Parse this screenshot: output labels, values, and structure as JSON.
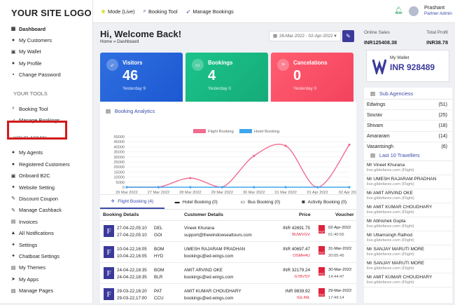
{
  "app": {
    "logo": "YOUR SITE LOGO"
  },
  "sidebar": {
    "items": [
      {
        "label": "Dashboard",
        "icon": "dashboard-icon",
        "glyph": "▦"
      },
      {
        "label": "My Customers",
        "icon": "user-icon",
        "glyph": "●"
      },
      {
        "label": "My Wallet",
        "icon": "wallet-icon",
        "glyph": "▣"
      },
      {
        "label": "My Profile",
        "icon": "profile-icon",
        "glyph": "●"
      },
      {
        "label": "Change Password",
        "icon": "lock-icon",
        "glyph": "▪"
      }
    ],
    "tools_title": "YOUR TOOLS",
    "tools": [
      {
        "label": "Booking Tool",
        "icon": "search-icon",
        "glyph": "⌕"
      },
      {
        "label": "Manage Bookings",
        "icon": "rocket-icon",
        "glyph": "➶"
      }
    ],
    "admin_title": "YOUR ADMIN",
    "admin": [
      {
        "label": "My Agents",
        "icon": "agents-icon",
        "glyph": "●"
      },
      {
        "label": "Registered Customers",
        "icon": "customers-icon",
        "glyph": "●"
      },
      {
        "label": "Onboard B2C",
        "icon": "onboard-icon",
        "glyph": "▣"
      },
      {
        "label": "Website Setting",
        "icon": "settings-icon",
        "glyph": "✦"
      },
      {
        "label": "Discount Coupon",
        "icon": "coupon-icon",
        "glyph": "✎"
      },
      {
        "label": "Manage Cashback",
        "icon": "cashback-icon",
        "glyph": "✎"
      },
      {
        "label": "Invoices",
        "icon": "invoice-icon",
        "glyph": "▤"
      },
      {
        "label": "All Notifications",
        "icon": "bell-icon",
        "glyph": "▲"
      },
      {
        "label": "Settings",
        "icon": "gear-icon",
        "glyph": "✦"
      },
      {
        "label": "Chatboat Settings",
        "icon": "chat-icon",
        "glyph": "✦"
      },
      {
        "label": "My Themes",
        "icon": "theme-icon",
        "glyph": "▤"
      },
      {
        "label": "My Apps",
        "icon": "apps-icon",
        "glyph": "➤"
      },
      {
        "label": "Manage Pages",
        "icon": "pages-icon",
        "glyph": "▤"
      }
    ]
  },
  "topbar": {
    "mode": "Mode (Live)",
    "booking_tool": "Booking Tool",
    "manage_bookings": "Manage Bookings",
    "user_name": "Prashant",
    "user_role": "Partner Admin"
  },
  "main": {
    "welcome": "Hi, Welcome Back!",
    "breadcrumb": "Home » Dashboard",
    "date_range": "26-Mar-2022 - 02-Apr-2022",
    "cards": [
      {
        "title": "Visitors",
        "value": "46",
        "sub": "Yesterday 9",
        "icon": "rocket-icon"
      },
      {
        "title": "Bookings",
        "value": "4",
        "sub": "Yesterday 0",
        "icon": "ticket-icon"
      },
      {
        "title": "Cancelations",
        "value": "0",
        "sub": "Yesterday 0",
        "icon": "cancel-icon"
      }
    ],
    "analytics_title": "Booking Analytics"
  },
  "chart_data": {
    "type": "line",
    "title": "",
    "xlabel": "",
    "ylabel": "",
    "ylim": [
      0,
      50000
    ],
    "yticks": [
      0,
      5000,
      10000,
      15000,
      20000,
      25000,
      30000,
      35000,
      40000,
      45000,
      50000
    ],
    "x": [
      "26 Mar 2022",
      "27 Mar 2022",
      "28 Mar 2022",
      "29 Mar 2022",
      "30 Mar 2022",
      "31 Mar 2022",
      "01 Apr 2022",
      "02 Apr 2022"
    ],
    "legend_position": "top",
    "series": [
      {
        "name": "Flight Booking",
        "color": "#f06c8f",
        "values": [
          0,
          0,
          9000,
          0,
          31000,
          41000,
          0,
          42000
        ]
      },
      {
        "name": "Hotel Booking",
        "color": "#3fa5ee",
        "values": [
          0,
          0,
          0,
          0,
          0,
          0,
          0,
          0
        ]
      }
    ]
  },
  "tabs": [
    {
      "label": "Flight Booking (4)",
      "icon": "plane-icon",
      "glyph": "✈"
    },
    {
      "label": "Hotel Booking (0)",
      "icon": "bed-icon",
      "glyph": "▬"
    },
    {
      "label": "Bus Booking (0)",
      "icon": "bus-icon",
      "glyph": "▭"
    },
    {
      "label": "Activity Booking (0)",
      "icon": "camera-icon",
      "glyph": "◙"
    }
  ],
  "table": {
    "headers": [
      "Booking Details",
      "Customer Details",
      "Price",
      "Voucher"
    ],
    "rows": [
      {
        "d1": "27-04-22,05:10",
        "c1": "DEL",
        "d2": "27-04-22,05:10",
        "c2": "GOI",
        "name": "Vineet Khurana",
        "email": "support@thewindowseattours.com",
        "price": "INR 42691.75",
        "ref": "BUWVGV",
        "vdate": "02-Apr-2022",
        "vtime": "01:40:56"
      },
      {
        "d1": "10-04-22,16:05",
        "c1": "BOM",
        "d2": "10-04-22,16:05",
        "c2": "HYD",
        "name": "UMESH RAJARAM PRADHAN",
        "email": "bookings@ed-wings.com",
        "price": "INR 40697.47",
        "ref": "OSMH4U",
        "vdate": "31-Mar-2022",
        "vtime": "20:05:45"
      },
      {
        "d1": "24-04-22,18:35",
        "c1": "BOM",
        "d2": "24-04-22,18:35",
        "c2": "BLR",
        "name": "AMIT ARVIND OKE",
        "email": "bookings@ed-wings.com",
        "price": "INR 32179.24",
        "ref": "G78VSY",
        "vdate": "30-Mar-2022",
        "vtime": "14:44:47"
      },
      {
        "d1": "29-03-22,16:20",
        "c1": "PAT",
        "d2": "29-03-22,17:00",
        "c2": "CCU",
        "name": "AMIT KUMAR CHOUDHARY",
        "email": "bookings@ed-wings.com",
        "price": "INR 9839.92",
        "ref": "IGL49L",
        "vdate": "29-Mar-2022",
        "vtime": "17:49:14"
      }
    ]
  },
  "right": {
    "online_sales_label": "Online Sales",
    "online_sales_value": "INR125408.38",
    "total_profit_label": "Total Profit",
    "total_profit_value": "INR38.78",
    "wallet_label": "My Wallet",
    "wallet_value": "INR 928489",
    "sub_agencies_title": "Sub Agenciess",
    "sub_agencies": [
      {
        "name": "Edwings",
        "count": "(51)"
      },
      {
        "name": "Sourav",
        "count": "(25)"
      },
      {
        "name": "Shivam",
        "count": "(18)"
      },
      {
        "name": "Amararam",
        "count": "(14)"
      },
      {
        "name": "Vasantsingh",
        "count": "(6)"
      }
    ],
    "travellers_title": "Last 10 Travellers",
    "travellers": [
      {
        "name": "Mr Vineet Khurana",
        "sub": "live.glidefares.com (Flight)"
      },
      {
        "name": "Mr UMESH RAJARAM PRADHAN",
        "sub": "live.glidefares.com (Flight)"
      },
      {
        "name": "Mr AMIT ARVIND OKE",
        "sub": "live.glidefares.com (Flight)"
      },
      {
        "name": "Mr AMIT KUMAR CHOUDHARY",
        "sub": "live.glidefares.com (Flight)"
      },
      {
        "name": "Mr Abhishek Gupta",
        "sub": "live.glidefares.com (Flight)"
      },
      {
        "name": "Mr Uttamsingh Rathod",
        "sub": "live.glidefares.com (Flight)"
      },
      {
        "name": "Mr SANJAY MARUTI MORE",
        "sub": "live.glidefares.com (Flight)"
      },
      {
        "name": "Mr SANJAY MARUTI MORE",
        "sub": "live.glidefares.com (Flight)"
      },
      {
        "name": "Mr AMIT KUMAR CHOUDHARY",
        "sub": "live.glidefares.com (Flight)"
      }
    ]
  }
}
